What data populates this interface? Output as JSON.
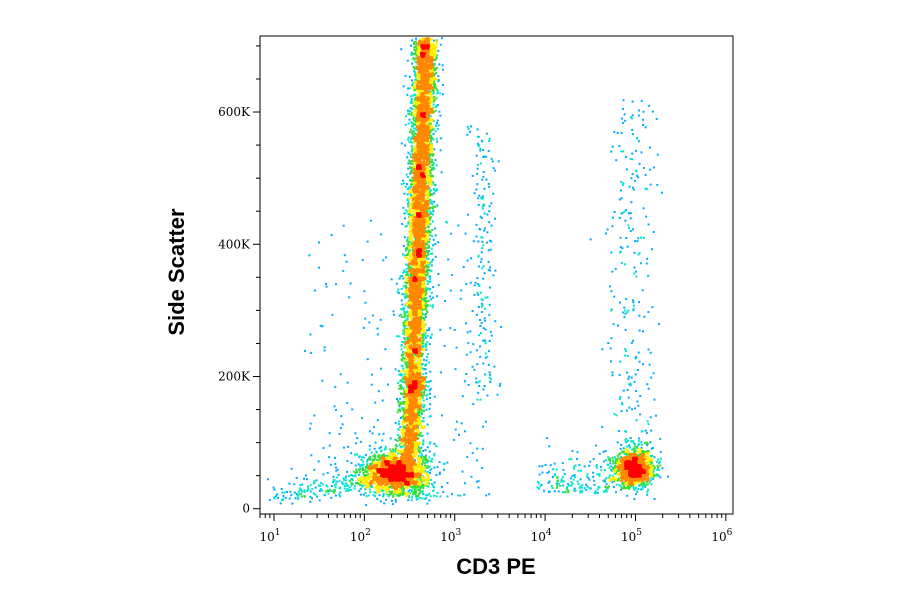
{
  "chart_data": {
    "type": "scatter",
    "style": "density dot plot (flow cytometry, pseudocolor)",
    "xlabel": "CD3 PE",
    "ylabel": "Side Scatter",
    "x_scale": "log",
    "y_scale": "linear",
    "xlim": [
      7,
      1200000
    ],
    "ylim": [
      -8000,
      715000
    ],
    "x_ticks": [
      {
        "value": 10,
        "base": "10",
        "exp": "1"
      },
      {
        "value": 100,
        "base": "10",
        "exp": "2"
      },
      {
        "value": 1000,
        "base": "10",
        "exp": "3"
      },
      {
        "value": 10000,
        "base": "10",
        "exp": "4"
      },
      {
        "value": 100000,
        "base": "10",
        "exp": "5"
      },
      {
        "value": 1000000,
        "base": "10",
        "exp": "6"
      }
    ],
    "y_ticks": [
      {
        "value": 0,
        "label": "0"
      },
      {
        "value": 200000,
        "label": "200K"
      },
      {
        "value": 400000,
        "label": "400K"
      },
      {
        "value": 600000,
        "label": "600K"
      }
    ],
    "grid": false,
    "legend": "none",
    "density_colors": [
      "#0000ff",
      "#00aaff",
      "#00e5d0",
      "#33dd33",
      "#ffee00",
      "#ff8800",
      "#ff0000"
    ],
    "populations": [
      {
        "description": "CD3-negative, low side scatter",
        "center_x": 220,
        "center_y": 55000,
        "sd_log10_x": 0.17,
        "sd_y": 16000,
        "count": 2000
      },
      {
        "description": "CD3-negative, granulocyte streak",
        "x_start": 320,
        "x_end": 470,
        "y_start": 100000,
        "y_end": 715000,
        "sd_log10_x": 0.065,
        "count": 6500
      },
      {
        "description": "CD3-positive lymphocytes",
        "center_x": 95000,
        "center_y": 62000,
        "sd_log10_x": 0.11,
        "sd_y": 14000,
        "count": 1300
      }
    ]
  }
}
